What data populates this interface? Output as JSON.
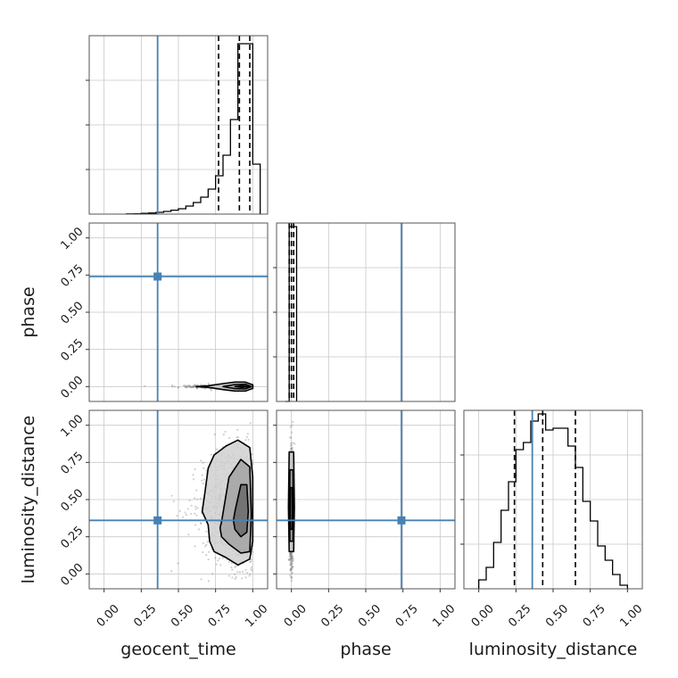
{
  "chart_data": {
    "type": "corner",
    "parameters": [
      "geocent_time",
      "phase",
      "luminosity_distance"
    ],
    "axis_labels": {
      "x": [
        "geocent_time",
        "phase",
        "luminosity_distance"
      ],
      "y": [
        "phase",
        "luminosity_distance"
      ]
    },
    "range": [
      -0.1,
      1.1
    ],
    "ticks": [
      0.0,
      0.25,
      0.5,
      0.75,
      1.0
    ],
    "tick_labels": [
      "0.00",
      "0.25",
      "0.50",
      "0.75",
      "1.00"
    ],
    "truths": {
      "geocent_time": 0.36,
      "phase": 0.74,
      "luminosity_distance": 0.36
    },
    "truth_color": "#4682b4",
    "grid": true,
    "histograms": [
      {
        "parameter": "geocent_time",
        "bin_edges": [
          0.15,
          0.2,
          0.25,
          0.3,
          0.35,
          0.4,
          0.45,
          0.5,
          0.55,
          0.6,
          0.65,
          0.7,
          0.75,
          0.8,
          0.85,
          0.9,
          0.95,
          1.0,
          1.05
        ],
        "counts": [
          0.001,
          0.002,
          0.004,
          0.006,
          0.01,
          0.015,
          0.022,
          0.03,
          0.045,
          0.065,
          0.095,
          0.14,
          0.215,
          0.33,
          0.53,
          0.955,
          0.955,
          0.28
        ],
        "quantiles": [
          0.77,
          0.91,
          0.98
        ]
      },
      {
        "parameter": "phase",
        "bin_edges": [
          -0.04,
          -0.015,
          0.01,
          0.035
        ],
        "counts": [
          0.0,
          0.98,
          0.98
        ],
        "quantiles": [
          -0.015,
          0.0,
          0.015
        ]
      },
      {
        "parameter": "luminosity_distance",
        "bin_edges": [
          0.0,
          0.05,
          0.1,
          0.15,
          0.2,
          0.25,
          0.3,
          0.35,
          0.4,
          0.45,
          0.5,
          0.55,
          0.6,
          0.65,
          0.7,
          0.75,
          0.8,
          0.85,
          0.9,
          0.95,
          1.0
        ],
        "counts": [
          0.05,
          0.12,
          0.26,
          0.44,
          0.6,
          0.78,
          0.82,
          0.94,
          0.98,
          0.89,
          0.9,
          0.9,
          0.8,
          0.68,
          0.49,
          0.38,
          0.24,
          0.16,
          0.08,
          0.02
        ],
        "quantiles": [
          0.24,
          0.43,
          0.65
        ]
      }
    ],
    "scatter": [
      {
        "x": "geocent_time",
        "y": "phase",
        "contours": [
          {
            "x": [
              0.62,
              0.7,
              0.8,
              0.88,
              0.95,
              1.0,
              1.0,
              0.95,
              0.88,
              0.8,
              0.7,
              0.62
            ],
            "y": [
              0.0,
              0.005,
              0.02,
              0.03,
              0.03,
              0.012,
              -0.012,
              -0.03,
              -0.03,
              -0.02,
              -0.005,
              0.0
            ]
          },
          {
            "x": [
              0.8,
              0.88,
              0.95,
              0.99,
              0.95,
              0.88,
              0.8
            ],
            "y": [
              0.0,
              0.014,
              0.016,
              0.0,
              -0.016,
              -0.014,
              0.0
            ]
          },
          {
            "x": [
              0.88,
              0.93,
              0.97,
              0.93,
              0.88
            ],
            "y": [
              0.0,
              0.006,
              0.0,
              -0.006,
              0.0
            ]
          }
        ]
      },
      {
        "x": "geocent_time",
        "y": "luminosity_distance",
        "contours": [
          {
            "x": [
              0.66,
              0.68,
              0.7,
              0.74,
              0.82,
              0.9,
              0.98,
              1.0,
              1.0,
              0.98,
              0.9,
              0.82,
              0.74,
              0.71,
              0.7,
              0.66
            ],
            "y": [
              0.42,
              0.56,
              0.71,
              0.8,
              0.86,
              0.9,
              0.85,
              0.65,
              0.22,
              0.1,
              0.06,
              0.11,
              0.15,
              0.22,
              0.33,
              0.42
            ]
          },
          {
            "x": [
              0.79,
              0.84,
              0.92,
              0.98,
              0.99,
              0.98,
              0.92,
              0.84,
              0.79,
              0.78,
              0.79
            ],
            "y": [
              0.35,
              0.65,
              0.77,
              0.72,
              0.4,
              0.15,
              0.14,
              0.2,
              0.25,
              0.31,
              0.35
            ]
          },
          {
            "x": [
              0.88,
              0.92,
              0.96,
              0.97,
              0.96,
              0.92,
              0.88,
              0.87,
              0.88
            ],
            "y": [
              0.42,
              0.6,
              0.6,
              0.42,
              0.28,
              0.25,
              0.3,
              0.36,
              0.42
            ]
          }
        ]
      },
      {
        "x": "phase",
        "y": "luminosity_distance",
        "contours": [
          {
            "x": [
              -0.015,
              0.015,
              0.02,
              0.015,
              -0.015,
              -0.02,
              -0.015
            ],
            "y": [
              0.82,
              0.82,
              0.45,
              0.15,
              0.15,
              0.45,
              0.82
            ]
          },
          {
            "x": [
              -0.01,
              0.01,
              0.012,
              0.01,
              -0.01,
              -0.012,
              -0.01
            ],
            "y": [
              0.7,
              0.7,
              0.45,
              0.22,
              0.22,
              0.45,
              0.7
            ]
          },
          {
            "x": [
              -0.006,
              0.006,
              0.007,
              0.006,
              -0.006,
              -0.007,
              -0.006
            ],
            "y": [
              0.58,
              0.58,
              0.42,
              0.3,
              0.3,
              0.42,
              0.58
            ]
          }
        ]
      }
    ]
  }
}
